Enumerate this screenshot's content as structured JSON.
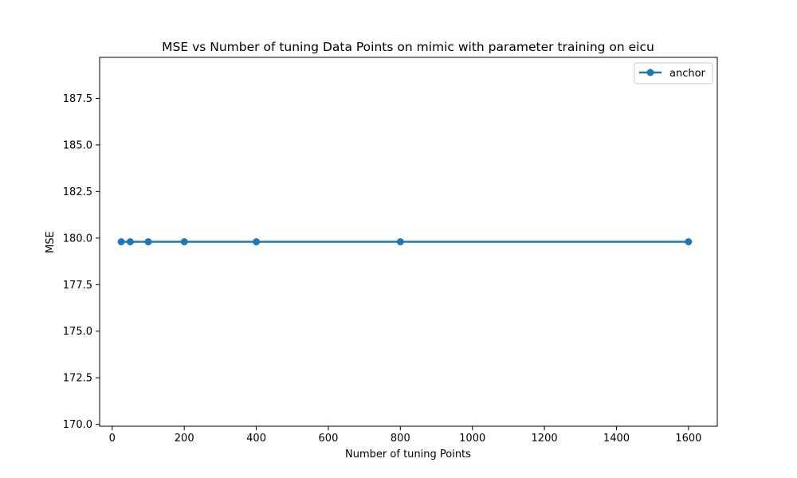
{
  "chart_data": {
    "type": "line",
    "title": "MSE vs Number of tuning Data Points on mimic with parameter training on eicu",
    "xlabel": "Number of tuning Points",
    "ylabel": "MSE",
    "xlim": [
      -35,
      1680
    ],
    "ylim": [
      169.9,
      189.7
    ],
    "xticks": [
      0,
      200,
      400,
      600,
      800,
      1000,
      1200,
      1400,
      1600
    ],
    "yticks": [
      170.0,
      172.5,
      175.0,
      177.5,
      180.0,
      182.5,
      185.0,
      187.5
    ],
    "ytick_labels": [
      "170.0",
      "172.5",
      "175.0",
      "177.5",
      "180.0",
      "182.5",
      "185.0",
      "187.5"
    ],
    "grid": false,
    "legend_position": "top-right",
    "series": [
      {
        "name": "anchor",
        "color": "#1f77b4",
        "marker": "circle",
        "x": [
          25,
          50,
          100,
          200,
          400,
          800,
          1600
        ],
        "y": [
          179.8,
          179.8,
          179.8,
          179.8,
          179.8,
          179.8,
          179.8
        ]
      }
    ]
  }
}
